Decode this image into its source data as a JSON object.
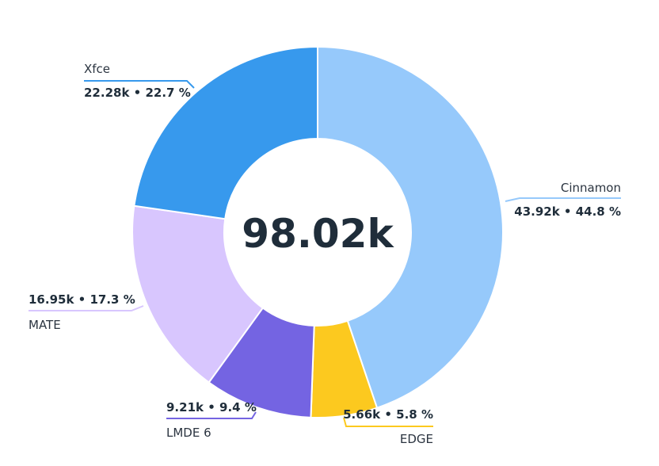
{
  "chart_data": {
    "type": "pie",
    "variant": "donut",
    "center_label": "98.02k",
    "slices": [
      {
        "name": "Cinnamon",
        "value": 43.92,
        "value_label": "43.92k",
        "percent_label": "44.8 %",
        "color": "#96c9fb"
      },
      {
        "name": "EDGE",
        "value": 5.66,
        "value_label": "5.66k",
        "percent_label": "5.8 %",
        "color": "#fcc91f"
      },
      {
        "name": "LMDE 6",
        "value": 9.21,
        "value_label": "9.21k",
        "percent_label": "9.4 %",
        "color": "#7464e2"
      },
      {
        "name": "MATE",
        "value": 16.95,
        "value_label": "16.95k",
        "percent_label": "17.3 %",
        "color": "#d8c6fe"
      },
      {
        "name": "Xfce",
        "value": 22.28,
        "value_label": "22.28k",
        "percent_label": "22.7 %",
        "color": "#3799ed"
      }
    ]
  }
}
